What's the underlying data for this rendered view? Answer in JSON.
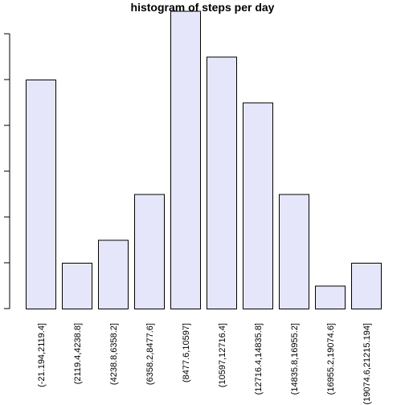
{
  "chart_data": {
    "type": "bar",
    "title": "histogram of steps per day",
    "xlabel": "",
    "ylabel": "",
    "categories": [
      "(-21.194,2119.4]",
      "(2119.4,4238.8]",
      "(4238.8,6358.2]",
      "(6358.2,8477.6]",
      "(8477.6,10597]",
      "(10597,12716.4]",
      "(12716.4,14835.8]",
      "(14835.8,16955.2]",
      "(16955.2,19074.6]",
      "(19074.6,21215.194]"
    ],
    "values": [
      10,
      2,
      3,
      5,
      13,
      11,
      9,
      5,
      1,
      2
    ],
    "ylim": [
      0,
      12
    ],
    "y_ticks": [
      0,
      2,
      4,
      6,
      8,
      10,
      12
    ],
    "y_tick_labels_visible": false,
    "bar_fill": "#e6e6fa",
    "bar_stroke": "#000000",
    "grid": false,
    "legend": "none"
  }
}
